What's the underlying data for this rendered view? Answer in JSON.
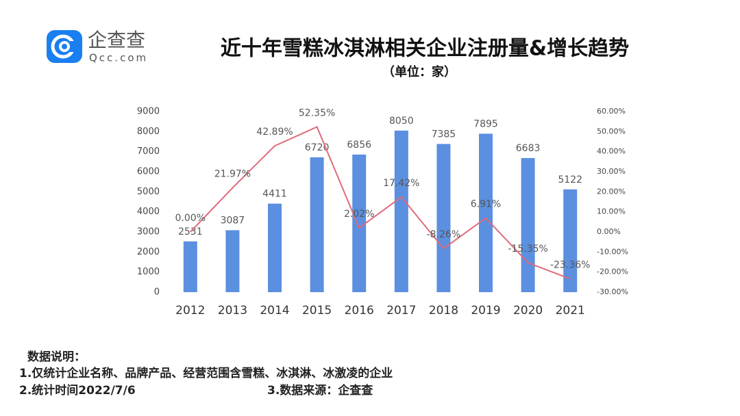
{
  "header": {
    "logo_text": "企查查",
    "logo_domain": "Qcc.com"
  },
  "chart_data": {
    "type": "bar",
    "title": "近十年雪糕冰淇淋相关企业注册量&增长趋势",
    "subtitle": "（单位：家）",
    "categories": [
      "2012",
      "2013",
      "2014",
      "2015",
      "2016",
      "2017",
      "2018",
      "2019",
      "2020",
      "2021"
    ],
    "series": [
      {
        "type": "bar",
        "color": "#5b8fe0",
        "values": [
          2531,
          3087,
          4411,
          6720,
          6856,
          8050,
          7385,
          7895,
          6683,
          5122
        ]
      },
      {
        "type": "line",
        "axis": "y2",
        "color": "#e06a7a",
        "values": [
          0,
          21.97,
          42.89,
          52.35,
          2.02,
          17.42,
          -8.26,
          6.91,
          -15.35,
          -23.36
        ],
        "value_labels": [
          "0.00%",
          "21.97%",
          "42.89%",
          "52.35%",
          "2.02%",
          "17.42%",
          "-8.26%",
          "6.91%",
          "-15.35%",
          "-23.36%"
        ]
      }
    ],
    "ylim": [
      0,
      9000
    ],
    "yticks": [
      0,
      1000,
      2000,
      3000,
      4000,
      5000,
      6000,
      7000,
      8000,
      9000
    ],
    "y2lim": [
      -30,
      60
    ],
    "y2ticks": [
      {
        "value": -30,
        "label": "-30.00%"
      },
      {
        "value": -20,
        "label": "-20.00%"
      },
      {
        "value": -10,
        "label": "-10.00%"
      },
      {
        "value": 0,
        "label": "0.00%"
      },
      {
        "value": 10,
        "label": "10.00%"
      },
      {
        "value": 20,
        "label": "20.00%"
      },
      {
        "value": 30,
        "label": "30.00%"
      },
      {
        "value": 40,
        "label": "40.00%"
      },
      {
        "value": 50,
        "label": "50.00%"
      },
      {
        "value": 60,
        "label": "60.00%"
      }
    ],
    "grid": false
  },
  "notes": {
    "heading": "数据说明：",
    "lines": [
      "1.仅统计企业名称、品牌产品、经营范围含雪糕、冰淇淋、冰激凌的企业",
      "2.统计时间2022/7/6",
      "3.数据来源：企查查"
    ]
  }
}
